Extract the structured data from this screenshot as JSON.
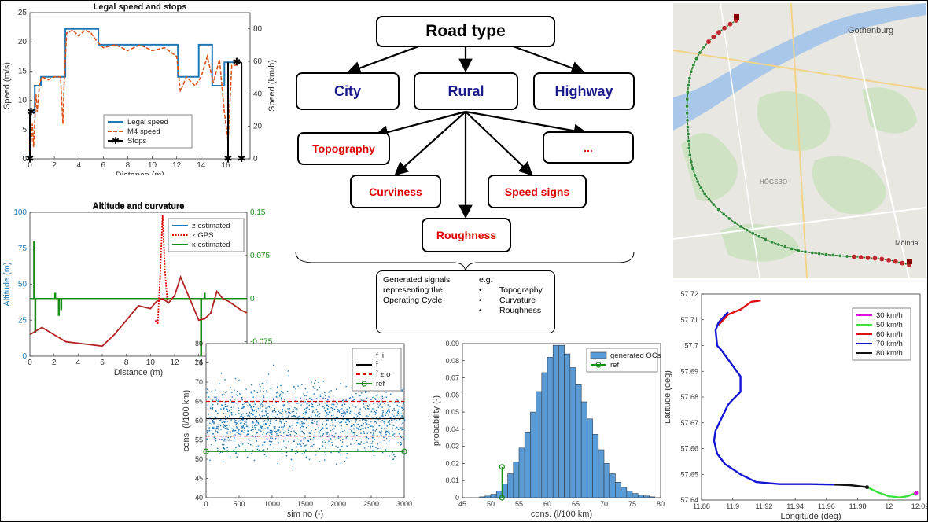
{
  "diagram": {
    "root": "Road type",
    "level1": [
      "City",
      "Rural",
      "Highway"
    ],
    "level2": [
      "Topography",
      "...",
      "Curviness",
      "Speed signs",
      "Roughness"
    ],
    "generated_text": "Generated signals representing the Operating Cycle",
    "eg_label": "e.g.",
    "eg_items": [
      "Topography",
      "Curvature",
      "Roughness"
    ]
  },
  "map": {
    "place_labels": [
      "Gothenburg",
      "Mölndal",
      "HÖGSBO"
    ]
  },
  "colors": {
    "blue": "#1f77b4",
    "orange": "#d95319",
    "green": "#1a8c1a",
    "red": "#e00000",
    "dark_red": "#b22222",
    "node_blue": "#1a1a8c",
    "hist_fill": "#5b9bd5"
  },
  "chart_data": [
    {
      "type": "line",
      "title": "Legal speed and stops",
      "xlabel": "Distance (m)",
      "ylabel": "Speed (m/s)",
      "ylabel_right": "Speed (km/h)",
      "xlim": [
        0,
        18
      ],
      "ylim": [
        0,
        25
      ],
      "ylim_right": [
        0,
        90
      ],
      "xticks": [
        "0",
        "2",
        "4",
        "6",
        "8",
        "10",
        "12",
        "14",
        "16"
      ],
      "yticks": [
        "0",
        "5",
        "10",
        "15",
        "20",
        "25"
      ],
      "yticks_right": [
        "0",
        "20",
        "40",
        "60",
        "80"
      ],
      "legend": [
        "Legal speed",
        "M4 speed",
        "Stops"
      ],
      "legend_position": "lower-right",
      "series": [
        {
          "name": "Legal speed",
          "x": [
            0,
            0.4,
            0.4,
            0.9,
            0.9,
            2.9,
            2.9,
            5.6,
            5.6,
            12.1,
            12.1,
            13.8,
            13.8,
            14.9,
            14.9,
            15.9,
            15.9,
            16.4,
            16.4,
            17.1
          ],
          "y": [
            8,
            8,
            12.5,
            12.5,
            14,
            14,
            22.2,
            22.2,
            19.5,
            19.5,
            14,
            14,
            19.5,
            19.5,
            12.5,
            12.5,
            16.5,
            16.5,
            16.5,
            16.5
          ]
        },
        {
          "name": "M4 speed",
          "x": [
            0,
            0.2,
            0.3,
            0.5,
            0.6,
            0.8,
            1,
            1.5,
            2,
            2.5,
            2.7,
            2.8,
            3,
            3.5,
            4,
            4.5,
            5,
            5.5,
            6,
            7,
            8,
            9,
            10,
            11,
            12,
            12.3,
            12.8,
            13.5,
            14,
            14.5,
            15,
            15.5,
            15.9,
            16.2,
            16.5,
            17
          ],
          "y": [
            0,
            6,
            2,
            11,
            8,
            13,
            14,
            13.5,
            14,
            14,
            6,
            13,
            21.5,
            22,
            21,
            22,
            21.5,
            20,
            19,
            19.5,
            18.5,
            19.5,
            18.5,
            19,
            17.5,
            11.5,
            14,
            12.5,
            14,
            17.5,
            13,
            17,
            8,
            3,
            16,
            16
          ]
        },
        {
          "name": "Stops",
          "x": [
            0,
            0.1,
            16.2,
            16.9,
            17.3
          ],
          "y": [
            0,
            8,
            0,
            16.5,
            0
          ]
        }
      ]
    },
    {
      "type": "line",
      "title": "Altitude and curvature",
      "xlabel": "Distance (m)",
      "ylabel": "Altitude (m)",
      "xlim": [
        0,
        18
      ],
      "ylim": [
        0,
        100
      ],
      "ylim_right": [
        -0.1,
        0.15
      ],
      "xticks": [
        "0",
        "2",
        "4",
        "6",
        "8",
        "10",
        "12",
        "14",
        "16"
      ],
      "yticks": [
        "0",
        "25",
        "50",
        "75",
        "100"
      ],
      "yticks_right": [
        "-0.075",
        "0",
        "0.075",
        "0.15"
      ],
      "legend": [
        "z estimated",
        "z GPS",
        "κ estimated"
      ],
      "legend_position": "top-right",
      "series": [
        {
          "name": "z estimated",
          "x": [
            0,
            1,
            2,
            3,
            4,
            5,
            6,
            7,
            8,
            9,
            10,
            10.5,
            11,
            11.5,
            12,
            12.5,
            13,
            13.5,
            14,
            14.5,
            15,
            15.5,
            16,
            16.5,
            17,
            17.5,
            18
          ],
          "y": [
            15,
            20,
            15,
            10,
            9,
            8,
            7,
            15,
            25,
            35,
            33,
            38,
            40,
            37,
            42,
            55,
            45,
            35,
            25,
            26,
            30,
            45,
            40,
            38,
            35,
            32,
            30
          ]
        },
        {
          "name": "z GPS",
          "x": [
            10.4,
            10.6,
            10.8,
            11,
            11.2,
            11.4
          ],
          "y": [
            25,
            22,
            55,
            98,
            60,
            38
          ]
        },
        {
          "name": "κ estimated",
          "x": [
            0,
            0.3,
            0.35,
            0.45,
            0.5,
            2,
            2.1,
            2.4,
            2.5,
            2.6,
            12.5,
            14,
            14.2,
            14.5
          ],
          "y": [
            0,
            0,
            0.1,
            -0.06,
            0,
            0,
            0.01,
            -0.03,
            0,
            -0.02,
            0,
            0,
            -0.1,
            0.01
          ]
        }
      ]
    },
    {
      "type": "scatter",
      "xlabel": "sim no (-)",
      "ylabel": "cons. (l/100 km)",
      "xlim": [
        0,
        3000
      ],
      "ylim": [
        40,
        80
      ],
      "xticks": [
        "0",
        "500",
        "1000",
        "1500",
        "2000",
        "2500",
        "3000"
      ],
      "yticks": [
        "40",
        "45",
        "50",
        "55",
        "60",
        "65",
        "70",
        "75",
        "80"
      ],
      "legend": [
        "f_i",
        "f̄",
        "f̄ ± σ",
        "ref"
      ],
      "legend_position": "top-right",
      "series": [
        {
          "name": "f_i",
          "x_range": [
            0,
            3000
          ],
          "mean": 60.5,
          "std": 4.5,
          "count": 3000
        },
        {
          "name": "f̄",
          "y": 60.5
        },
        {
          "name": "f̄ ± σ",
          "y": [
            56,
            65
          ]
        },
        {
          "name": "ref",
          "y": 52
        }
      ]
    },
    {
      "type": "bar",
      "xlabel": "cons. (l/100 km)",
      "ylabel": "probability (-)",
      "xlim": [
        45,
        80
      ],
      "ylim": [
        0,
        0.09
      ],
      "xticks": [
        "45",
        "50",
        "55",
        "60",
        "65",
        "70",
        "75",
        "80"
      ],
      "yticks": [
        "0",
        "0.01",
        "0.02",
        "0.03",
        "0.04",
        "0.05",
        "0.06",
        "0.07",
        "0.08",
        "0.09"
      ],
      "legend": [
        "generated OCs",
        "ref"
      ],
      "legend_position": "top-right",
      "bin_start": 48,
      "bin_width": 1,
      "values": [
        0.0005,
        0.001,
        0.002,
        0.004,
        0.008,
        0.014,
        0.021,
        0.029,
        0.038,
        0.05,
        0.062,
        0.073,
        0.082,
        0.089,
        0.089,
        0.084,
        0.076,
        0.066,
        0.056,
        0.046,
        0.037,
        0.028,
        0.02,
        0.014,
        0.009,
        0.006,
        0.004,
        0.0025,
        0.0015,
        0.001,
        0.0005
      ],
      "ref": {
        "x": 52,
        "y": [
          0,
          0.018
        ]
      }
    },
    {
      "type": "line",
      "xlabel": "Longitude (deg)",
      "ylabel": "Latitude (deg)",
      "xlim": [
        11.88,
        12.02
      ],
      "ylim": [
        57.64,
        57.72
      ],
      "xticks": [
        "11.88",
        "11.9",
        "11.92",
        "11.94",
        "11.96",
        "11.98",
        "12",
        "12.02"
      ],
      "yticks": [
        "57.64",
        "57.65",
        "57.66",
        "57.67",
        "57.68",
        "57.69",
        "57.7",
        "57.71",
        "57.72"
      ],
      "legend": [
        "30 km/h",
        "50 km/h",
        "60 km/h",
        "70 km/h",
        "80 km/h"
      ],
      "legend_position": "top-right",
      "series": [
        {
          "name": "30 km/h",
          "x": [
            12.016,
            12.018
          ],
          "y": [
            57.6425,
            57.6432
          ]
        },
        {
          "name": "50 km/h",
          "x": [
            11.986,
            11.993,
            12.0,
            12.007,
            12.012,
            12.016
          ],
          "y": [
            57.645,
            57.643,
            57.6415,
            57.641,
            57.6415,
            57.6425
          ]
        },
        {
          "name": "60 km/h",
          "x": [
            11.891,
            11.897,
            11.905,
            11.912,
            11.918
          ],
          "y": [
            57.708,
            57.712,
            57.714,
            57.717,
            57.7175
          ]
        },
        {
          "name": "70 km/h",
          "x": [
            11.897,
            11.891,
            11.889,
            11.89,
            11.893,
            11.899,
            11.905,
            11.905,
            11.9,
            11.897,
            11.893,
            11.889,
            11.888,
            11.89,
            11.895,
            11.905,
            11.915,
            11.93,
            11.95,
            11.965
          ],
          "y": [
            57.713,
            57.709,
            57.706,
            57.7,
            57.698,
            57.693,
            57.688,
            57.682,
            57.679,
            57.677,
            57.672,
            57.667,
            57.663,
            57.658,
            57.654,
            57.65,
            57.647,
            57.6462,
            57.6462,
            57.646
          ]
        },
        {
          "name": "80 km/h",
          "x": [
            11.965,
            11.975,
            11.986
          ],
          "y": [
            57.646,
            57.6458,
            57.645
          ]
        }
      ]
    }
  ]
}
